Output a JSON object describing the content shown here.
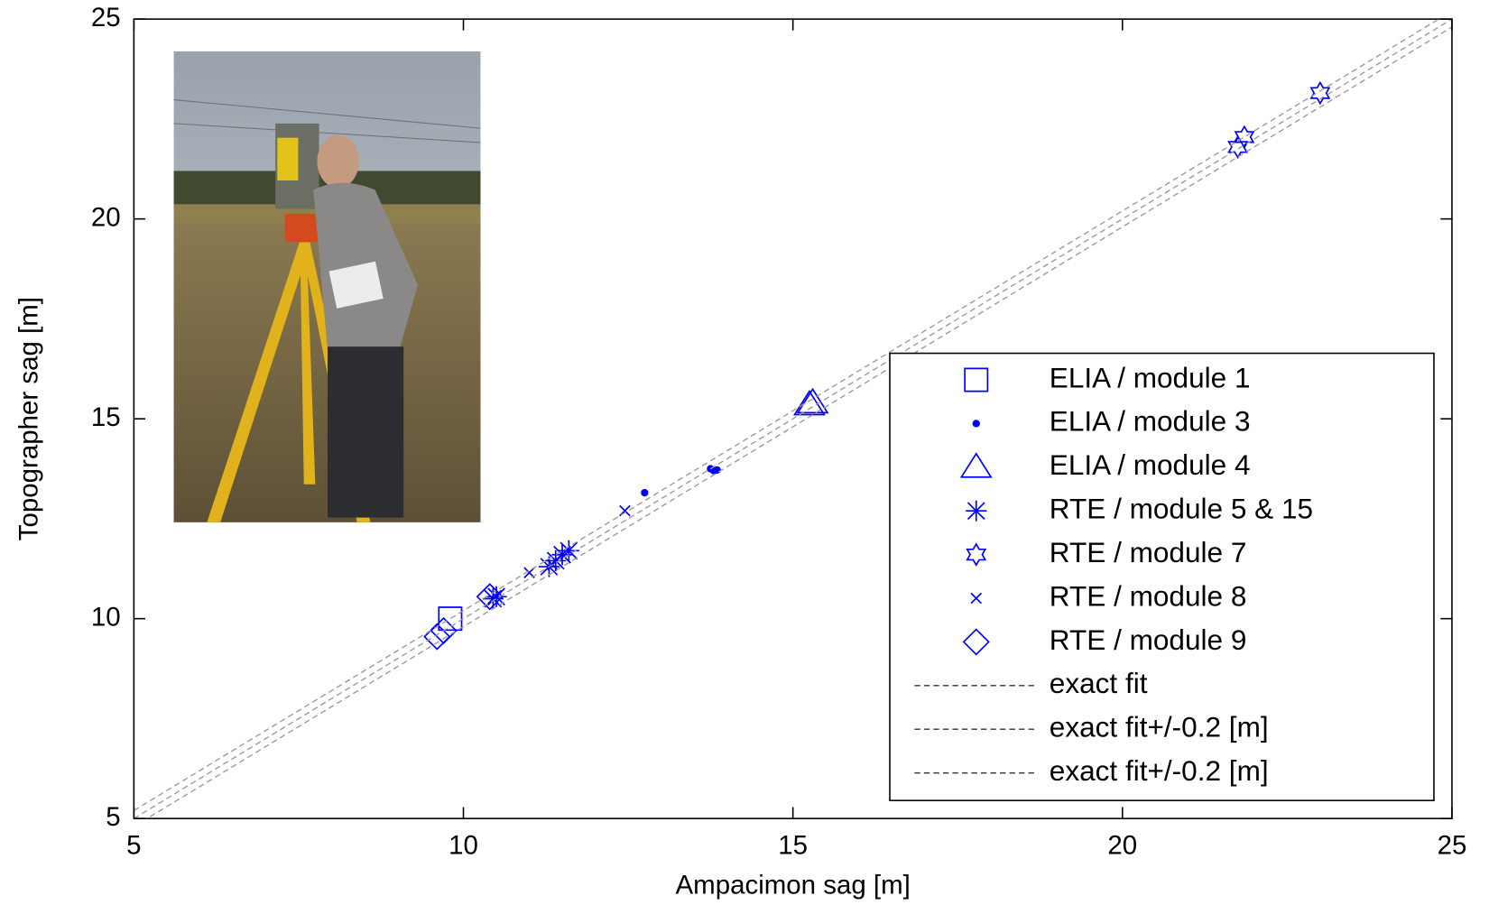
{
  "chart_data": {
    "type": "scatter",
    "xlabel": "Ampacimon sag [m]",
    "ylabel": "Topographer sag [m]",
    "xlim": [
      5,
      25
    ],
    "ylim": [
      5,
      25
    ],
    "xticks": [
      5,
      10,
      15,
      20,
      25
    ],
    "yticks": [
      5,
      10,
      15,
      20,
      25
    ],
    "grid": false,
    "legend": "lower right",
    "series": [
      {
        "name": "ELIA / module 1",
        "color": "#0000ff",
        "marker": "square",
        "x": [
          9.8
        ],
        "values": [
          10.0
        ]
      },
      {
        "name": "ELIA / module 3",
        "color": "#0000ff",
        "marker": "dot",
        "x": [
          12.75,
          13.75,
          13.8,
          13.85
        ],
        "values": [
          13.15,
          13.75,
          13.7,
          13.72
        ]
      },
      {
        "name": "ELIA / module 4",
        "color": "#0000ff",
        "marker": "triangle",
        "x": [
          15.25,
          15.3
        ],
        "values": [
          15.35,
          15.4
        ]
      },
      {
        "name": "RTE / module 5 & 15",
        "color": "#0000ff",
        "marker": "star",
        "x": [
          10.45,
          10.5,
          11.3,
          11.4,
          11.5,
          11.6
        ],
        "values": [
          10.5,
          10.55,
          11.3,
          11.45,
          11.6,
          11.7
        ]
      },
      {
        "name": "RTE / module 7",
        "color": "#0000ff",
        "marker": "hexagram",
        "x": [
          21.75,
          21.85,
          23.0
        ],
        "values": [
          21.8,
          22.05,
          23.15
        ]
      },
      {
        "name": "RTE / module 8",
        "color": "#0000ff",
        "marker": "x",
        "x": [
          11.0,
          11.35,
          12.45
        ],
        "values": [
          11.15,
          11.35,
          12.7
        ]
      },
      {
        "name": "RTE / module 9",
        "color": "#0000ff",
        "marker": "diamond",
        "x": [
          9.6,
          9.7,
          10.4
        ],
        "values": [
          9.55,
          9.7,
          10.55
        ]
      },
      {
        "name": "exact fit",
        "color": "#999999",
        "style": "dashed",
        "x": [
          5,
          25
        ],
        "values": [
          5,
          25
        ]
      },
      {
        "name": "exact fit+/-0.2 [m]",
        "color": "#999999",
        "style": "dashed",
        "x": [
          5,
          25
        ],
        "values": [
          5.2,
          25.2
        ]
      },
      {
        "name": "exact fit+/-0.2 [m]",
        "color": "#999999",
        "style": "dashed",
        "x": [
          5,
          25
        ],
        "values": [
          4.8,
          24.8
        ]
      }
    ]
  }
}
